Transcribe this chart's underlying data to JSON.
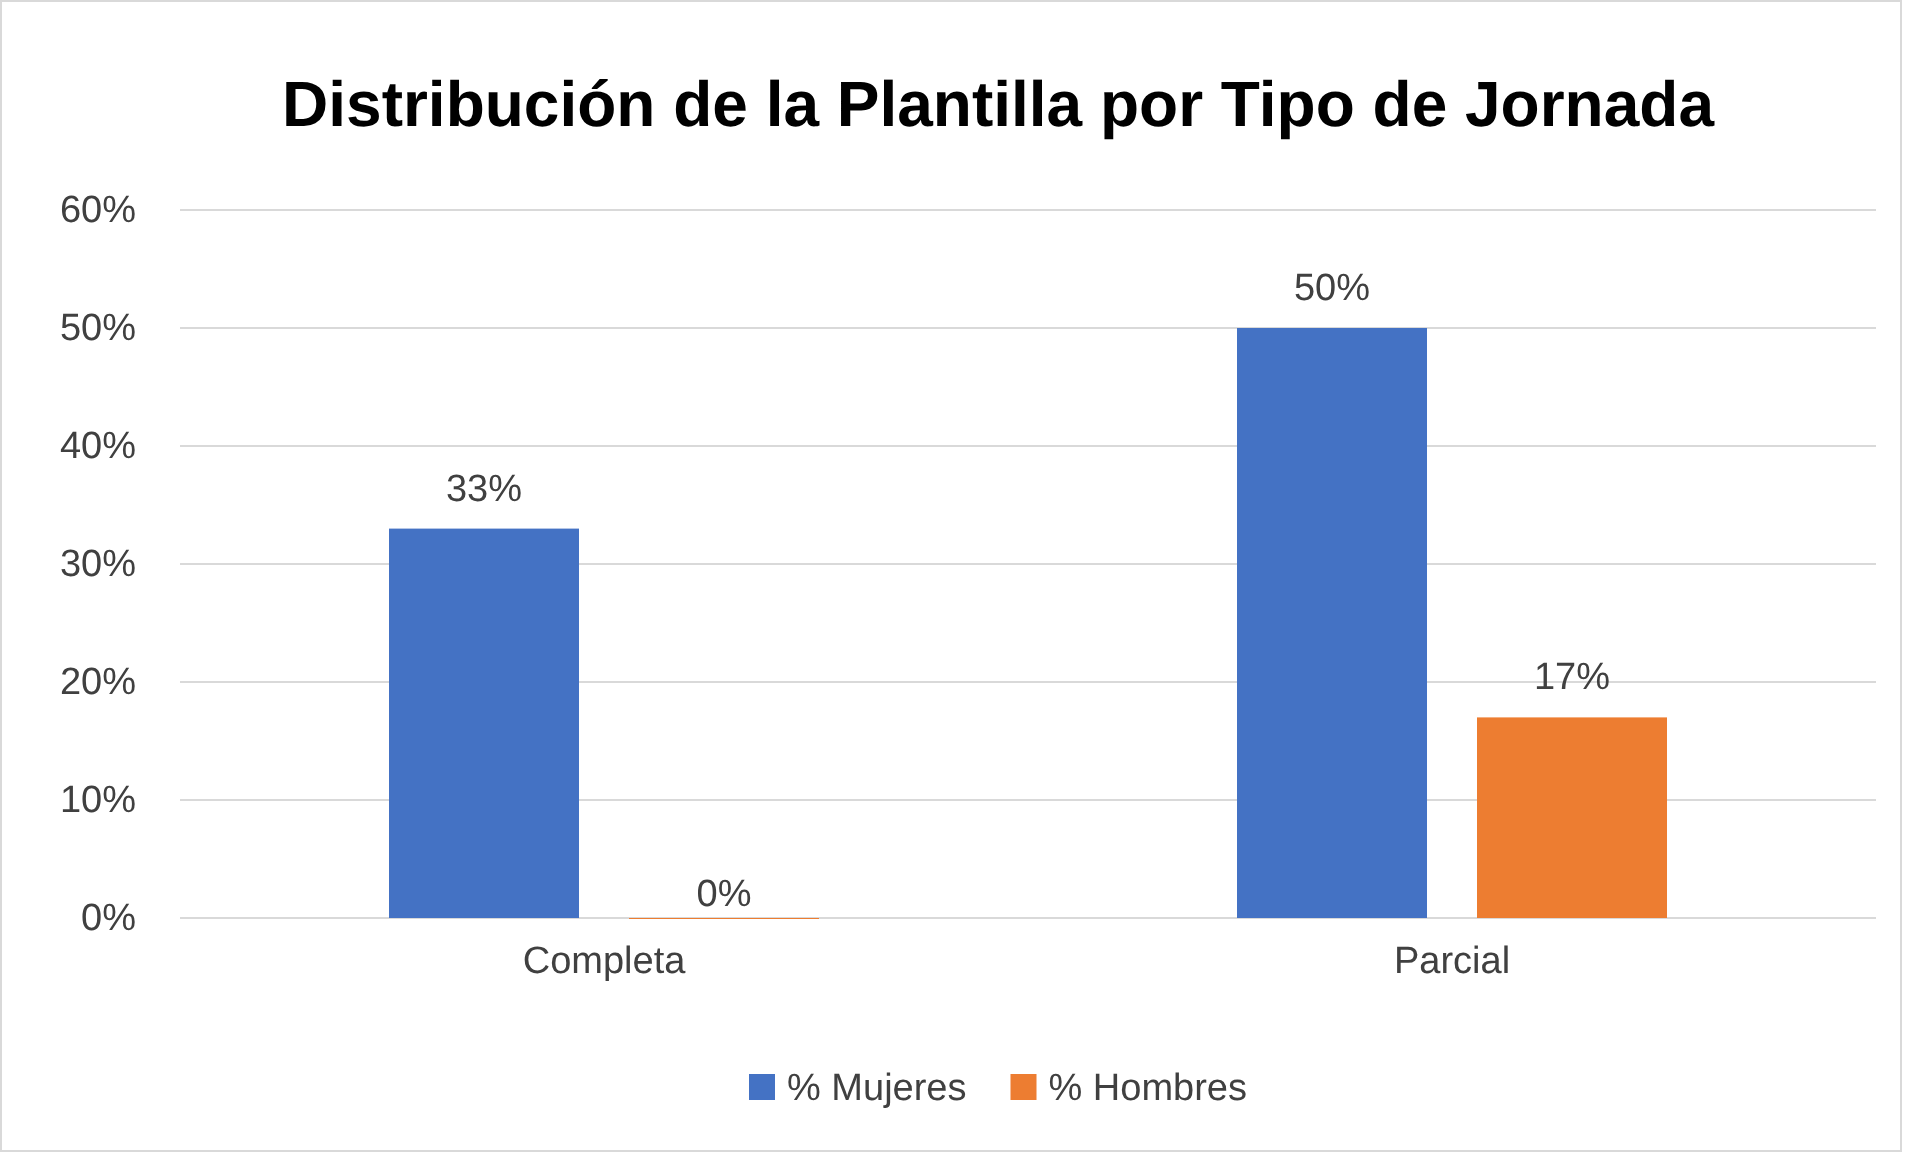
{
  "chart_data": {
    "type": "bar",
    "title": "Distribución de la Plantilla por Tipo de Jornada",
    "categories": [
      "Completa",
      "Parcial"
    ],
    "series": [
      {
        "name": "% Mujeres",
        "color": "#4472c4",
        "values": [
          33,
          50
        ],
        "value_labels": [
          "33%",
          "50%"
        ]
      },
      {
        "name": "% Hombres",
        "color": "#ed7d31",
        "values": [
          0,
          17
        ],
        "value_labels": [
          "0%",
          "17%"
        ]
      }
    ],
    "ylim": [
      0,
      60
    ],
    "yticks": [
      {
        "value": 0,
        "label": "0%"
      },
      {
        "value": 10,
        "label": "10%"
      },
      {
        "value": 20,
        "label": "20%"
      },
      {
        "value": 30,
        "label": "30%"
      },
      {
        "value": 40,
        "label": "40%"
      },
      {
        "value": 50,
        "label": "50%"
      },
      {
        "value": 60,
        "label": "60%"
      }
    ],
    "grid": "y",
    "legend": "bottom"
  }
}
